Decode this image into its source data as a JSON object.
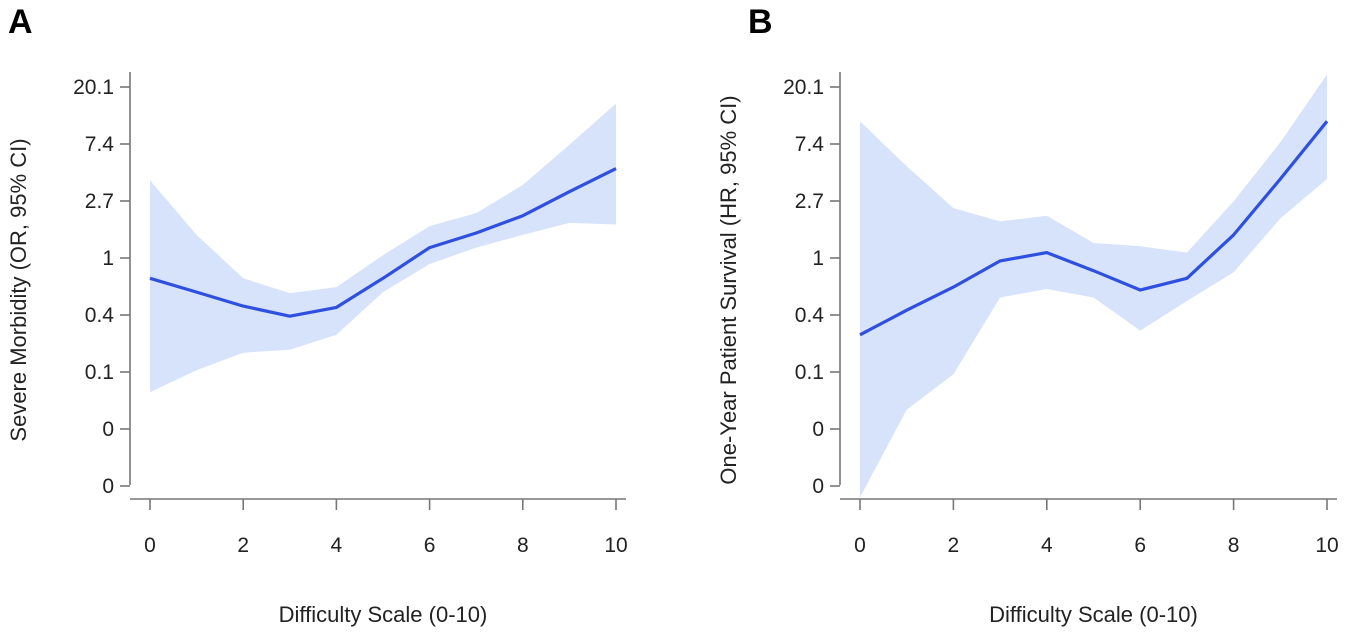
{
  "chart_data": [
    {
      "panel": "A",
      "type": "line",
      "xlabel": "Difficulty Scale (0-10)",
      "ylabel": "Severe Morbidity (OR, 95% CI)",
      "x_ticks": [
        0,
        2,
        4,
        6,
        8,
        10
      ],
      "y_tick_labels": [
        "20.1",
        "7.4",
        "2.7",
        "1",
        "0.4",
        "0.1",
        "0",
        "0"
      ],
      "y_scale": "log (natural-log spaced ticks: e^3 ... e^-4)",
      "xlim": [
        0,
        10
      ],
      "line_color": "#2f4fe0",
      "band_color": "#d6e3fb",
      "x": [
        0,
        1,
        2,
        3,
        4,
        5,
        6,
        7,
        8,
        9,
        10
      ],
      "estimate": [
        0.7,
        0.55,
        0.43,
        0.36,
        0.42,
        0.7,
        1.2,
        1.55,
        2.1,
        3.2,
        4.8
      ],
      "ci_lower": [
        0.095,
        0.14,
        0.19,
        0.2,
        0.26,
        0.55,
        0.9,
        1.2,
        1.5,
        1.85,
        1.8
      ],
      "ci_upper": [
        3.9,
        1.5,
        0.7,
        0.54,
        0.6,
        1.05,
        1.75,
        2.2,
        3.6,
        7.3,
        15.0
      ]
    },
    {
      "panel": "B",
      "type": "line",
      "xlabel": "Difficulty Scale (0-10)",
      "ylabel": "One-Year Patient Survival (HR, 95% CI)",
      "x_ticks": [
        0,
        2,
        4,
        6,
        8,
        10
      ],
      "y_tick_labels": [
        "20.1",
        "7.4",
        "2.7",
        "1",
        "0.4",
        "0.1",
        "0",
        "0"
      ],
      "y_scale": "log (natural-log spaced ticks: e^3 ... e^-4)",
      "xlim": [
        0,
        10
      ],
      "line_color": "#2f4fe0",
      "band_color": "#d6e3fb",
      "x": [
        0,
        1,
        2,
        3,
        4,
        5,
        6,
        7,
        8,
        9,
        10
      ],
      "estimate": [
        0.26,
        0.4,
        0.6,
        0.95,
        1.1,
        0.8,
        0.57,
        0.7,
        1.5,
        4.0,
        11.0
      ],
      "ci_lower": [
        0.015,
        0.07,
        0.13,
        0.5,
        0.58,
        0.5,
        0.28,
        0.47,
        0.78,
        2.0,
        4.0
      ],
      "ci_upper": [
        11.0,
        5.0,
        2.4,
        1.9,
        2.1,
        1.3,
        1.23,
        1.1,
        2.7,
        7.6,
        25.0
      ]
    }
  ]
}
